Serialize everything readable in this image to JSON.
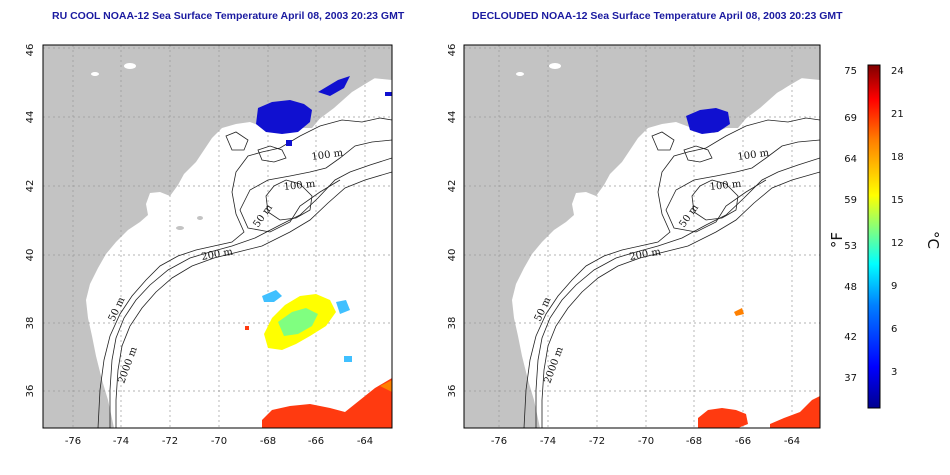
{
  "left_panel": {
    "title": "RU COOL NOAA-12 Sea Surface Temperature April 08, 2003 20:23 GMT",
    "contour_labels": [
      "100 m",
      "100 m",
      "50 m",
      "200 m",
      "50 m",
      "2000 m"
    ]
  },
  "right_panel": {
    "title": "DECLOUDED NOAA-12 Sea Surface Temperature April 08, 2003 20:23 GMT",
    "contour_labels": [
      "100 m",
      "100 m",
      "50 m",
      "200 m",
      "50 m",
      "2000 m"
    ]
  },
  "axes": {
    "x_ticks": [
      "-76",
      "-74",
      "-72",
      "-70",
      "-68",
      "-66",
      "-64"
    ],
    "y_ticks": [
      "36",
      "38",
      "40",
      "42",
      "44",
      "46"
    ]
  },
  "colorbar": {
    "f_ticks": [
      "75",
      "69",
      "64",
      "59",
      "53",
      "48",
      "42",
      "37"
    ],
    "c_ticks": [
      "24",
      "21",
      "18",
      "15",
      "12",
      "9",
      "6",
      "3"
    ],
    "f_unit": "°F",
    "c_unit": "°C",
    "colors": [
      "#00008f",
      "#0000ff",
      "#0080ff",
      "#00ffff",
      "#80ff80",
      "#ffff00",
      "#ff8000",
      "#ff0000",
      "#800000"
    ]
  },
  "colors": {
    "land": "#c3c3c3",
    "ocean": "#ffffff",
    "cold": "#1010d0",
    "warm": "#ff3a10"
  }
}
